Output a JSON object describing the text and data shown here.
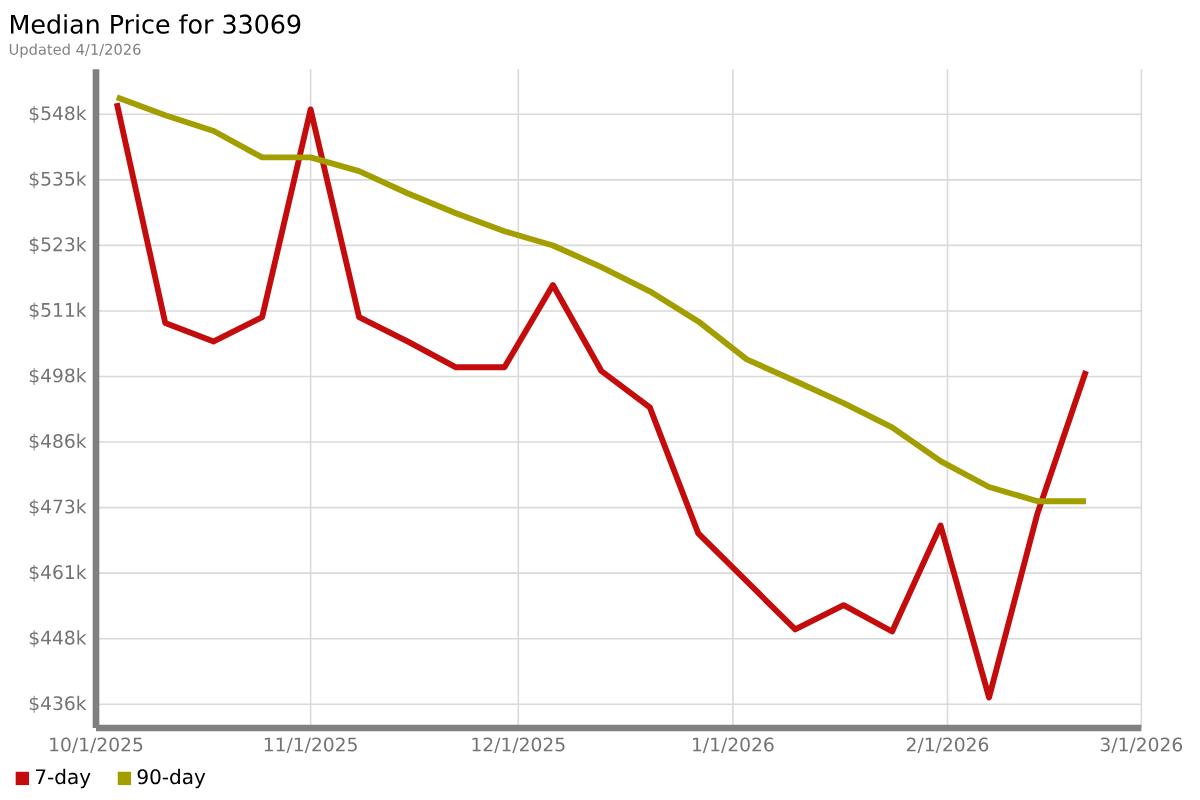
{
  "chart_data": {
    "type": "line",
    "title": "Median Price for 33069",
    "subtitle": "Updated 4/1/2026",
    "x": [
      "2025-10-04",
      "2025-10-11",
      "2025-10-18",
      "2025-10-25",
      "2025-11-01",
      "2025-11-08",
      "2025-11-15",
      "2025-11-22",
      "2025-11-29",
      "2025-12-06",
      "2025-12-13",
      "2025-12-20",
      "2025-12-27",
      "2026-01-03",
      "2026-01-10",
      "2026-01-17",
      "2026-01-24",
      "2026-01-31",
      "2026-02-07",
      "2026-02-14",
      "2026-02-21"
    ],
    "series": [
      {
        "name": "7-day",
        "color": "#c40c0c",
        "values": [
          550.0,
          508.3,
          504.8,
          509.4,
          548.8,
          509.4,
          504.8,
          499.9,
          499.9,
          515.5,
          499.2,
          492.3,
          468.4,
          459.3,
          450.2,
          454.8,
          449.8,
          469.9,
          437.3,
          472.2,
          499.2
        ]
      },
      {
        "name": "90-day",
        "color": "#a39e00",
        "values": [
          551.1,
          547.7,
          544.7,
          539.7,
          539.7,
          537.1,
          532.9,
          529.1,
          525.7,
          523.0,
          518.9,
          514.3,
          508.6,
          501.4,
          497.3,
          493.1,
          488.5,
          482.1,
          477.2,
          474.5,
          474.5
        ]
      }
    ],
    "xlim": [
      "2025-10-01",
      "2026-03-01"
    ],
    "ylim": [
      431.5,
      556.4
    ],
    "xticks": [
      {
        "value": "2025-10-01",
        "label": "10/1/2025"
      },
      {
        "value": "2025-11-01",
        "label": "11/1/2025"
      },
      {
        "value": "2025-12-01",
        "label": "12/1/2025"
      },
      {
        "value": "2026-01-01",
        "label": "1/1/2026"
      },
      {
        "value": "2026-02-01",
        "label": "2/1/2026"
      },
      {
        "value": "2026-03-01",
        "label": "3/1/2026"
      }
    ],
    "yticks": [
      {
        "value": 436.0,
        "label": "$436k"
      },
      {
        "value": 448.43,
        "label": "$448k"
      },
      {
        "value": 460.86,
        "label": "$461k"
      },
      {
        "value": 473.29,
        "label": "$473k"
      },
      {
        "value": 485.72,
        "label": "$486k"
      },
      {
        "value": 498.15,
        "label": "$498k"
      },
      {
        "value": 510.58,
        "label": "$511k"
      },
      {
        "value": 523.01,
        "label": "$523k"
      },
      {
        "value": 535.44,
        "label": "$535k"
      },
      {
        "value": 547.87,
        "label": "$548k"
      }
    ],
    "grid": true,
    "legend": "bottom"
  }
}
